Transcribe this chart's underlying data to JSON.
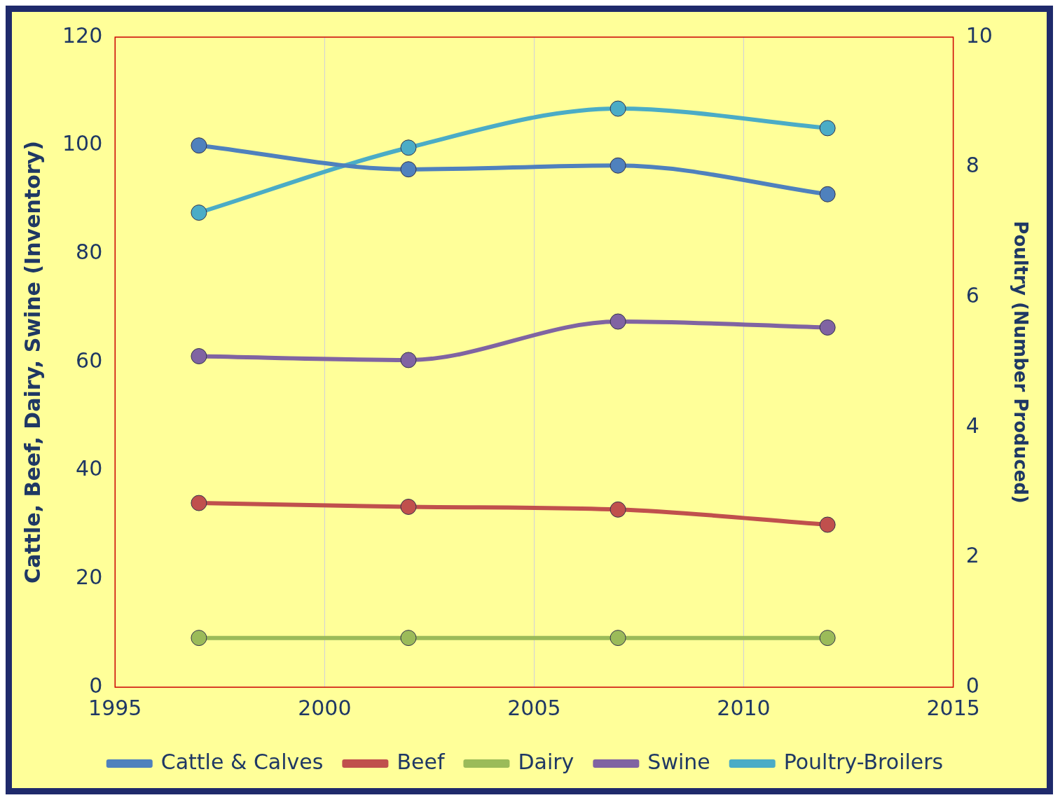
{
  "chart_data": {
    "type": "line",
    "xlabel": null,
    "ylabel": "Cattle, Beef, Dairy, Swine (Inventory)",
    "y2label": "Poultry (Number Produced)",
    "x": [
      1997,
      2002,
      2007,
      2012
    ],
    "series": [
      {
        "name": "Cattle & Calves",
        "color": "#4f81bd",
        "values": [
          100,
          95.6,
          96.3,
          91
        ]
      },
      {
        "name": "Beef",
        "color": "#c0504d",
        "values": [
          34,
          33.3,
          32.8,
          30
        ]
      },
      {
        "name": "Dairy",
        "color": "#9bbb59",
        "values": [
          9.1,
          9.1,
          9.1,
          9.1
        ]
      },
      {
        "name": "Swine",
        "color": "#8064a2",
        "values": [
          61.1,
          60.4,
          67.5,
          66.4
        ]
      },
      {
        "name": "Poultry-Broilers",
        "color": "#4bacc6",
        "values": [
          7.3,
          8.3,
          8.9,
          8.6
        ],
        "axis": "y2"
      }
    ],
    "xlim": [
      1995,
      2015
    ],
    "xticks": [
      1995,
      2000,
      2005,
      2010,
      2015
    ],
    "ylim": [
      0,
      120
    ],
    "yticks": [
      0,
      20,
      40,
      60,
      80,
      100,
      120
    ],
    "y2lim": [
      0,
      10
    ],
    "y2ticks": [
      0,
      2,
      4,
      6,
      8,
      10
    ],
    "grid": "x",
    "legend": "bottom",
    "marker": "circle",
    "line_style": "solid"
  }
}
